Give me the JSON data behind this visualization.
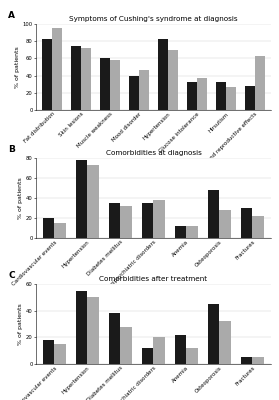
{
  "panel_A": {
    "title": "Symptoms of Cushing's syndrome at diagnosis",
    "categories": [
      "Fat distribution",
      "Skin lesions",
      "Muscle weakness",
      "Mood disorder",
      "Hypertension",
      "Glucose intolerance",
      "Hirsutism",
      "Sex and reproductive effects"
    ],
    "male": [
      82,
      75,
      60,
      40,
      82,
      33,
      33,
      28
    ],
    "female": [
      95,
      72,
      58,
      47,
      70,
      37,
      27,
      63
    ],
    "ylim": [
      0,
      100
    ],
    "yticks": [
      0,
      20,
      40,
      60,
      80,
      100
    ]
  },
  "panel_B": {
    "title": "Comorbidities at diagnosis",
    "categories": [
      "Cardiovascular events",
      "Hypertension",
      "Diabetes mellitus",
      "Neuropsychiatric disorders",
      "Anemia",
      "Osteoporosis",
      "Fractures"
    ],
    "male": [
      20,
      78,
      35,
      35,
      12,
      48,
      30
    ],
    "female": [
      15,
      73,
      32,
      38,
      12,
      28,
      22
    ],
    "ylim": [
      0,
      80
    ],
    "yticks": [
      0,
      20,
      40,
      60,
      80
    ]
  },
  "panel_C": {
    "title": "Comorbidities after treatment",
    "categories": [
      "Cardiovascular events",
      "Hypertension",
      "Diabetes mellitus",
      "Neuropsychiatric disorders",
      "Anemia",
      "Osteoporosis",
      "Fractures"
    ],
    "male": [
      18,
      55,
      38,
      12,
      22,
      45,
      5
    ],
    "female": [
      15,
      50,
      28,
      20,
      12,
      32,
      5
    ],
    "ylim": [
      0,
      60
    ],
    "yticks": [
      0,
      20,
      40,
      60
    ]
  },
  "male_color": "#1a1a1a",
  "female_color": "#aaaaaa",
  "bar_width": 0.35,
  "xlabel_fontsize": 4.0,
  "ylabel_fontsize": 4.5,
  "title_fontsize": 5.2,
  "tick_fontsize": 3.8,
  "legend_fontsize": 4.2,
  "panel_labels": [
    "A",
    "B",
    "C"
  ]
}
